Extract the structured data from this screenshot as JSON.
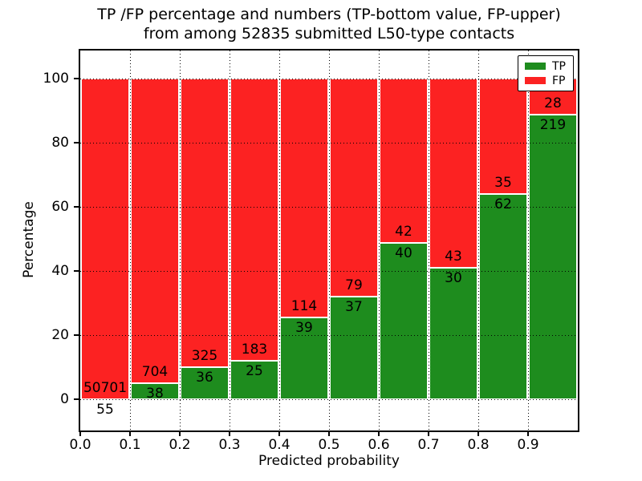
{
  "title": {
    "line1": "TP /FP percentage and numbers (TP-bottom value, FP-upper)",
    "line2": "from among 52835 submitted L50-type contacts"
  },
  "x_axis": {
    "label": "Predicted probability",
    "tick_labels": [
      "0.0",
      "0.1",
      "0.2",
      "0.3",
      "0.4",
      "0.5",
      "0.6",
      "0.7",
      "0.8",
      "0.9"
    ]
  },
  "y_axis": {
    "label": "Percentage",
    "tick_values": [
      0,
      20,
      40,
      60,
      80,
      100
    ]
  },
  "legend": {
    "items": [
      {
        "label": "TP",
        "color": "#1e8c1e"
      },
      {
        "label": "FP",
        "color": "#fc2222"
      }
    ]
  },
  "colors": {
    "tp_green": "#1e8c1e",
    "fp_red": "#fc2222",
    "grid": "#000000",
    "background": "#ffffff"
  },
  "chart_data": {
    "type": "bar",
    "stacked": true,
    "percent_normalized": true,
    "title": "TP /FP percentage and numbers (TP-bottom value, FP-upper) from among 52835 submitted L50-type contacts",
    "total_submitted": 52835,
    "xlabel": "Predicted probability",
    "ylabel": "Percentage",
    "xlim": [
      0.0,
      1.0
    ],
    "ylim": [
      -9.75,
      108.75
    ],
    "bin_width": 0.1,
    "grid": true,
    "legend_position": "upper right",
    "categories": [
      "0.0-0.1",
      "0.1-0.2",
      "0.2-0.3",
      "0.3-0.4",
      "0.4-0.5",
      "0.5-0.6",
      "0.6-0.7",
      "0.7-0.8",
      "0.8-0.9",
      "0.9-1.0"
    ],
    "series": [
      {
        "name": "TP",
        "color": "#1e8c1e",
        "counts": [
          55,
          38,
          36,
          25,
          39,
          37,
          40,
          30,
          62,
          219
        ]
      },
      {
        "name": "FP",
        "color": "#fc2222",
        "counts": [
          50701,
          704,
          325,
          183,
          114,
          79,
          42,
          43,
          35,
          28
        ]
      }
    ],
    "tp_percent": [
      0.11,
      5.12,
      9.97,
      12.02,
      25.49,
      31.9,
      48.78,
      41.1,
      63.92,
      88.66
    ]
  }
}
